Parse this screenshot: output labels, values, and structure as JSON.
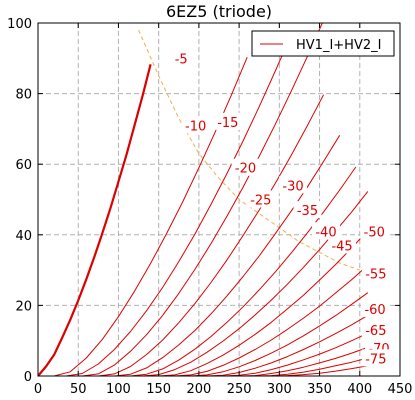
{
  "chart_data": {
    "type": "line",
    "title": "6EZ5 (triode)",
    "xlabel": "",
    "ylabel": "",
    "xlim": [
      0,
      450
    ],
    "ylim": [
      0,
      100
    ],
    "x_ticks": [
      0,
      50,
      100,
      150,
      200,
      250,
      300,
      350,
      400,
      450
    ],
    "y_ticks": [
      0,
      20,
      40,
      60,
      80,
      100
    ],
    "grid": true,
    "legend_position": "top-right",
    "legend": [
      {
        "name": "HV1_I+HV2_I",
        "color": "#dd0000"
      }
    ],
    "curve_color": "#dd0000",
    "load_line_color": "#f0b050",
    "series": [
      {
        "grid_voltage": "0",
        "x": [
          0,
          10,
          20,
          30,
          40,
          50,
          60,
          70,
          80,
          90,
          100,
          110,
          120,
          130,
          140
        ],
        "y": [
          0,
          2.7,
          6.0,
          10.8,
          15.9,
          21.4,
          27.4,
          33.7,
          40.5,
          47.5,
          55.0,
          62.7,
          71.0,
          79.4,
          88.3
        ]
      },
      {
        "grid_voltage": "-5",
        "x": [
          20,
          40,
          60,
          80,
          100,
          120,
          140,
          160,
          180,
          200,
          220,
          240,
          260
        ],
        "y": [
          0,
          1.2,
          5.1,
          10.4,
          16.8,
          24.0,
          31.9,
          40.4,
          49.4,
          59.0,
          69.0,
          79.4,
          90.3
        ]
      },
      {
        "grid_voltage": "-10",
        "x": [
          35,
          55,
          75,
          95,
          115,
          135,
          155,
          175,
          195,
          215,
          235,
          255,
          275,
          295,
          315
        ],
        "y": [
          0,
          0.7,
          3.4,
          7.5,
          12.6,
          18.5,
          25.1,
          32.4,
          40.2,
          48.6,
          57.4,
          66.6,
          76.3,
          86.4,
          96.8
        ]
      },
      {
        "grid_voltage": "-15",
        "x": [
          55,
          75,
          95,
          115,
          135,
          155,
          175,
          195,
          215,
          235,
          255,
          275,
          295,
          315,
          335,
          355
        ],
        "y": [
          0,
          0.6,
          3.1,
          7.0,
          11.7,
          17.2,
          23.4,
          30.2,
          37.5,
          45.3,
          53.5,
          62.2,
          71.3,
          80.8,
          90.6,
          100.8
        ]
      },
      {
        "grid_voltage": "-20",
        "x": [
          75,
          95,
          115,
          135,
          155,
          175,
          195,
          215,
          235,
          255,
          275,
          295,
          315,
          335,
          355
        ],
        "y": [
          0,
          0.6,
          2.7,
          6.1,
          10.2,
          15.1,
          20.5,
          26.5,
          32.9,
          39.8,
          47.0,
          54.6,
          62.6,
          71.0,
          79.7
        ]
      },
      {
        "grid_voltage": "-25",
        "x": [
          95,
          115,
          135,
          155,
          175,
          195,
          215,
          235,
          255,
          275,
          295,
          315,
          335,
          355,
          375
        ],
        "y": [
          0,
          0.5,
          2.3,
          5.2,
          8.8,
          12.9,
          17.6,
          22.7,
          28.2,
          34.0,
          40.3,
          46.8,
          53.6,
          60.8,
          68.2
        ]
      },
      {
        "grid_voltage": "-30",
        "x": [
          115,
          135,
          155,
          175,
          195,
          215,
          235,
          255,
          275,
          295,
          315,
          335,
          355,
          375,
          395
        ],
        "y": [
          0,
          0.5,
          2.0,
          4.5,
          7.6,
          11.2,
          15.2,
          19.6,
          24.4,
          29.5,
          34.9,
          40.6,
          46.5,
          52.7,
          59.2
        ]
      },
      {
        "grid_voltage": "-35",
        "x": [
          130,
          150,
          170,
          190,
          210,
          230,
          250,
          270,
          290,
          310,
          330,
          350,
          370,
          390,
          410
        ],
        "y": [
          0,
          0.4,
          1.8,
          3.9,
          6.7,
          9.9,
          13.4,
          17.3,
          21.5,
          26.0,
          30.8,
          35.8,
          41.1,
          46.5,
          52.3
        ]
      },
      {
        "grid_voltage": "-40",
        "x": [
          150,
          170,
          190,
          210,
          230,
          250,
          270,
          290,
          310,
          330,
          350,
          370,
          390,
          410
        ],
        "y": [
          0,
          0.3,
          1.5,
          3.5,
          5.9,
          8.7,
          11.8,
          15.2,
          19.0,
          22.9,
          27.2,
          31.6,
          36.3,
          41.2
        ]
      },
      {
        "grid_voltage": "-45",
        "x": [
          170,
          190,
          210,
          230,
          250,
          270,
          290,
          310,
          330,
          350,
          370,
          390,
          410
        ],
        "y": [
          0,
          0.3,
          1.3,
          3.0,
          5.1,
          7.5,
          10.2,
          13.2,
          16.4,
          19.8,
          23.5,
          27.3,
          31.4
        ]
      },
      {
        "grid_voltage": "-50",
        "x": [
          190,
          210,
          230,
          250,
          270,
          290,
          310,
          330,
          350,
          370,
          390,
          410
        ],
        "y": [
          0,
          0.3,
          1.2,
          2.6,
          4.4,
          6.5,
          8.8,
          11.4,
          14.2,
          17.1,
          20.3,
          23.6
        ]
      },
      {
        "grid_voltage": "-55",
        "x": [
          210,
          230,
          250,
          270,
          290,
          310,
          330,
          350,
          370,
          390,
          410
        ],
        "y": [
          0,
          0.2,
          1.0,
          2.2,
          3.7,
          5.5,
          7.5,
          9.7,
          12.0,
          14.5,
          17.2
        ]
      },
      {
        "grid_voltage": "-60",
        "x": [
          230,
          250,
          270,
          290,
          310,
          330,
          350,
          370,
          390,
          410
        ],
        "y": [
          0,
          0.2,
          0.8,
          1.8,
          3.1,
          4.6,
          6.2,
          8.0,
          10.0,
          12.1
        ]
      },
      {
        "grid_voltage": "-65",
        "x": [
          250,
          270,
          290,
          310,
          330,
          350,
          370,
          390,
          410
        ],
        "y": [
          0,
          0.1,
          0.7,
          1.5,
          2.5,
          3.7,
          5.0,
          6.5,
          8.1
        ]
      },
      {
        "grid_voltage": "-70",
        "x": [
          270,
          290,
          310,
          330,
          350,
          370,
          390,
          410
        ],
        "y": [
          0,
          0.1,
          0.5,
          1.1,
          1.9,
          2.9,
          3.9,
          5.1
        ]
      },
      {
        "grid_voltage": "-75",
        "x": [
          290,
          310,
          330,
          350,
          370,
          390,
          410
        ],
        "y": [
          0,
          0.1,
          0.4,
          0.8,
          1.4,
          2.1,
          2.9
        ]
      }
    ],
    "load_line": {
      "x": [
        125,
        150,
        175,
        200,
        225,
        250,
        275,
        300,
        325,
        350,
        375,
        400
      ],
      "y": [
        98,
        85,
        73,
        63,
        56,
        50,
        46,
        42,
        38,
        35,
        32,
        30
      ]
    },
    "annotations": [
      {
        "text": "-5",
        "x": 178,
        "y": 90
      },
      {
        "text": "-10",
        "x": 196,
        "y": 71
      },
      {
        "text": "-15",
        "x": 236,
        "y": 72
      },
      {
        "text": "-20",
        "x": 258,
        "y": 59
      },
      {
        "text": "-25",
        "x": 277,
        "y": 50
      },
      {
        "text": "-30",
        "x": 317,
        "y": 54
      },
      {
        "text": "-35",
        "x": 335,
        "y": 47
      },
      {
        "text": "-40",
        "x": 358,
        "y": 41
      },
      {
        "text": "-45",
        "x": 378,
        "y": 37
      },
      {
        "text": "-50",
        "x": 418,
        "y": 41
      },
      {
        "text": "-55",
        "x": 420,
        "y": 29
      },
      {
        "text": "-60",
        "x": 419,
        "y": 19
      },
      {
        "text": "-65",
        "x": 420,
        "y": 13
      },
      {
        "text": "-70",
        "x": 424,
        "y": 8
      },
      {
        "text": "-75",
        "x": 420,
        "y": 5
      }
    ]
  }
}
